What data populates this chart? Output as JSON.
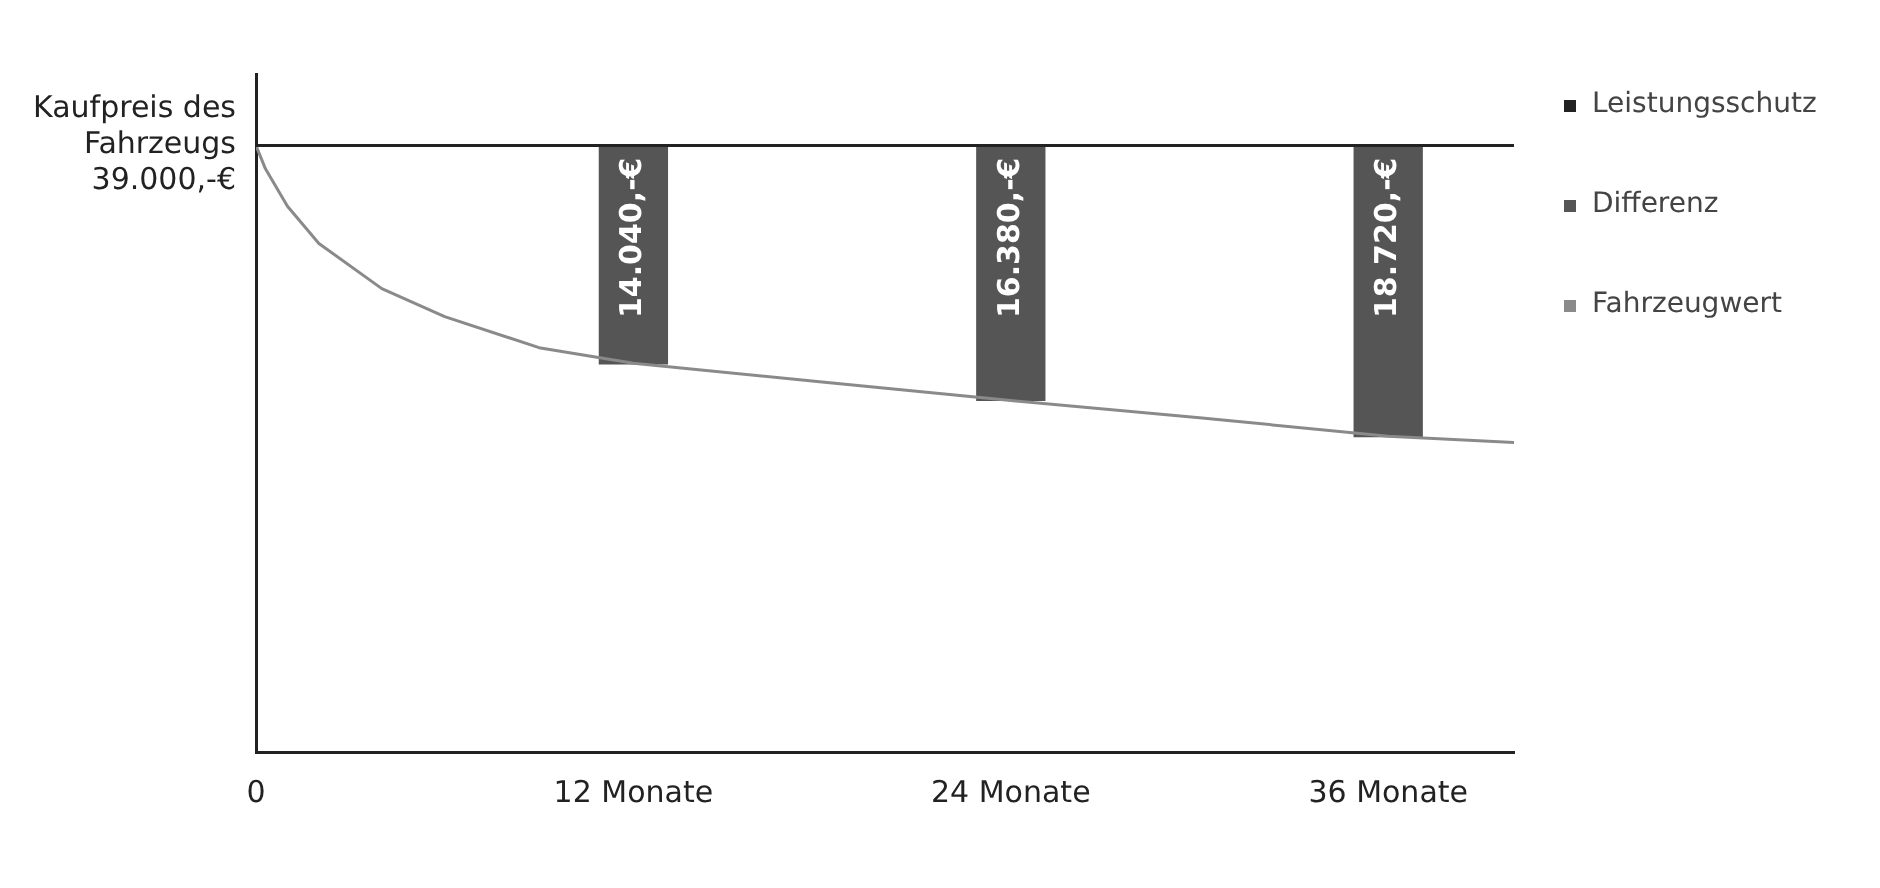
{
  "chart_data": {
    "type": "line",
    "xlim": [
      0,
      40
    ],
    "xticks": [
      {
        "value": 0,
        "label": "0"
      },
      {
        "value": 12,
        "label": "12 Monate"
      },
      {
        "value": 24,
        "label": "24 Monate"
      },
      {
        "value": 36,
        "label": "36 Monate"
      }
    ],
    "ylim": [
      0,
      43600
    ],
    "yticks": [
      {
        "value": 39000,
        "label": "Kaufpreis des Fahrzeugs 39.000,-€"
      }
    ],
    "grid": false,
    "legend": "right",
    "marker": "none",
    "series": [
      {
        "name": "Leistungsschutz",
        "color": "#222222",
        "x": [
          0,
          40
        ],
        "values": [
          39000,
          39000
        ]
      },
      {
        "name": "Differenz",
        "type": "bar",
        "color": "#555555",
        "x": [
          12,
          24,
          36
        ],
        "base": [
          24960,
          22620,
          20280
        ],
        "values": [
          14040,
          16380,
          18720
        ],
        "value_labels": [
          "14.040,-€",
          "16.380,-€",
          "18.720,-€"
        ]
      },
      {
        "name": "Fahrzeugwert",
        "color": "#8a8a8a",
        "x": [
          0,
          0.3,
          1,
          2,
          4,
          6,
          9,
          12,
          18,
          24,
          30,
          36,
          40
        ],
        "values": [
          39000,
          37500,
          35100,
          32700,
          29800,
          28000,
          26000,
          25000,
          23800,
          22600,
          21500,
          20300,
          19900
        ]
      }
    ]
  }
}
